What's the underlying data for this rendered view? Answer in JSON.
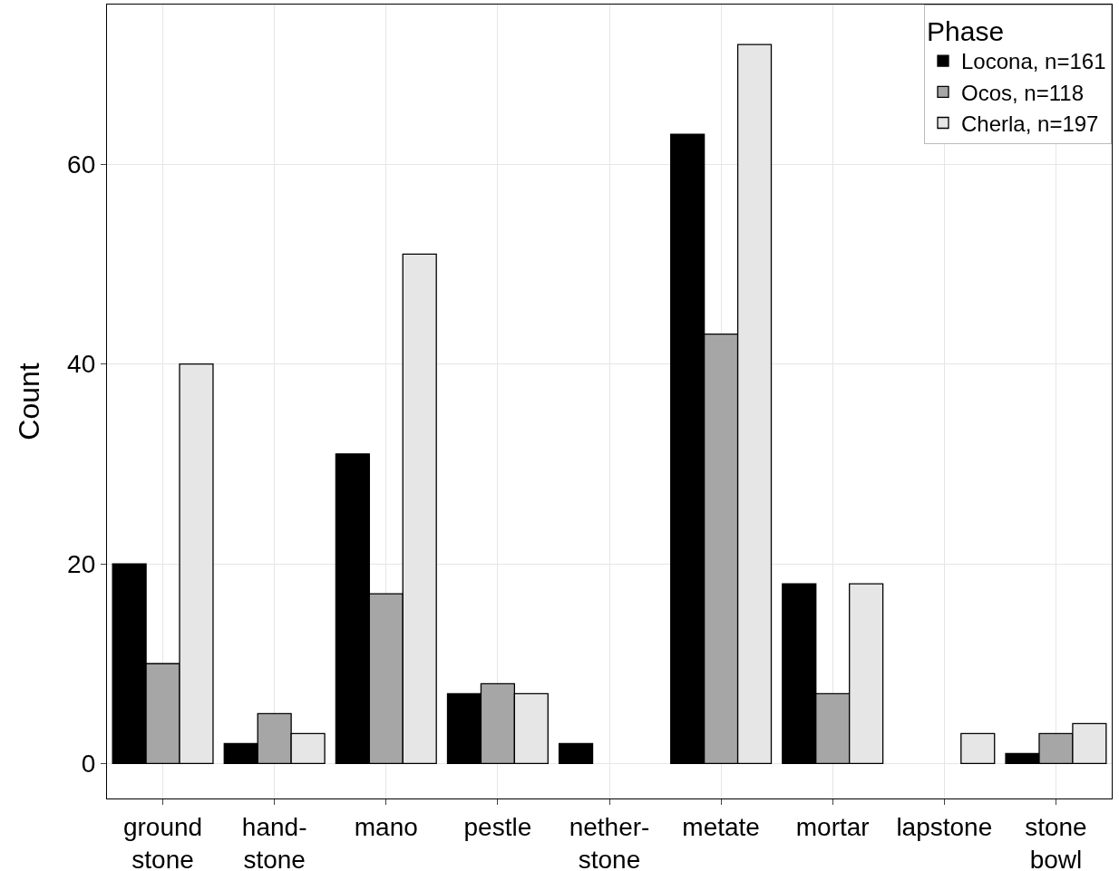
{
  "chart_data": {
    "type": "bar",
    "ylabel": "Count",
    "legend_title": "Phase",
    "legend": "top right",
    "grid": true,
    "categories": [
      "ground\nstone",
      "hand-\nstone",
      "mano",
      "pestle",
      "nether-\nstone",
      "metate",
      "mortar",
      "lapstone",
      "stone\nbowl"
    ],
    "series": [
      {
        "name": "Locona, n=161",
        "color": "#000000",
        "values": [
          20,
          2,
          31,
          7,
          2,
          63,
          18,
          null,
          1
        ]
      },
      {
        "name": "Ocos, n=118",
        "color": "#a6a6a6",
        "values": [
          10,
          5,
          17,
          8,
          null,
          43,
          7,
          null,
          3
        ]
      },
      {
        "name": "Cherla, n=197",
        "color": "#e6e6e6",
        "values": [
          40,
          3,
          51,
          7,
          null,
          72,
          18,
          3,
          4
        ]
      }
    ],
    "ylim": [
      -3.5,
      76
    ],
    "yticks": [
      0,
      20,
      40,
      60
    ]
  }
}
